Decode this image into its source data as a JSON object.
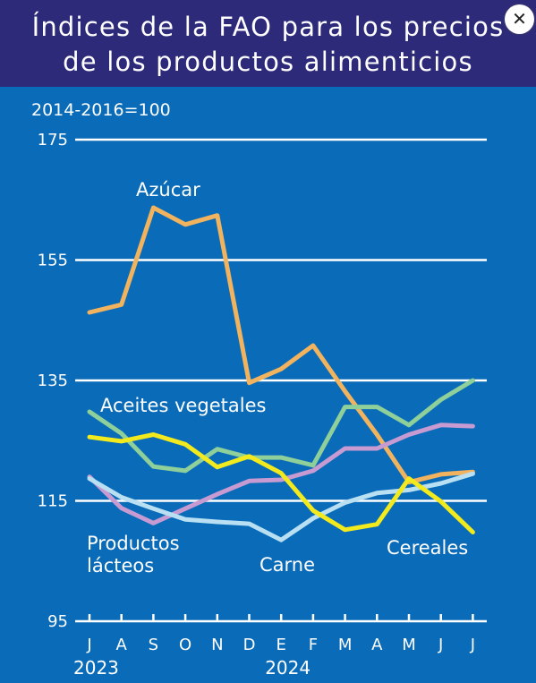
{
  "header": {
    "title_line1": "Índices de la FAO para los precios",
    "title_line2": "de los productos alimenticios"
  },
  "close_icon": "close-icon",
  "close_glyph": "✕",
  "chart_data": {
    "type": "line",
    "title": "Índices de la FAO para los precios de los productos alimenticios",
    "unit_label": "2014-2016=100",
    "ylim": [
      95,
      175
    ],
    "yticks": [
      95,
      115,
      135,
      155,
      175
    ],
    "categories": [
      "J",
      "A",
      "S",
      "O",
      "N",
      "D",
      "E",
      "F",
      "M",
      "A",
      "M",
      "J",
      "J"
    ],
    "year_labels": [
      {
        "text": "2023",
        "at_index": 0
      },
      {
        "text": "2024",
        "at_index": 6
      }
    ],
    "grid": "horizontal",
    "series": [
      {
        "name": "Azúcar",
        "color": "#f2b35e",
        "values": [
          146.3,
          147.6,
          163.7,
          160.9,
          162.4,
          134.6,
          136.9,
          140.8,
          133.2,
          126.0,
          118.1,
          119.4,
          119.8
        ]
      },
      {
        "name": "Aceites vegetales",
        "color": "#8ecf9a",
        "values": [
          129.8,
          126.2,
          120.7,
          120.0,
          123.6,
          122.2,
          122.2,
          120.9,
          130.6,
          130.6,
          127.6,
          131.8,
          135.0
        ]
      },
      {
        "name": "Productos lácteos",
        "color": "#c79bd1",
        "values": [
          119.0,
          113.8,
          111.3,
          113.7,
          116.1,
          118.3,
          118.5,
          120.0,
          123.7,
          123.7,
          126.0,
          127.6,
          127.4
        ]
      },
      {
        "name": "Carne",
        "color": "#b9e0f2",
        "values": [
          118.7,
          115.6,
          113.7,
          111.9,
          111.5,
          111.2,
          108.5,
          112.1,
          114.7,
          116.3,
          116.8,
          117.9,
          119.5
        ]
      },
      {
        "name": "Cereales",
        "color": "#f2ea1d",
        "values": [
          125.6,
          124.9,
          126.0,
          124.4,
          120.6,
          122.4,
          119.6,
          113.4,
          110.2,
          111.1,
          118.7,
          114.9,
          109.8
        ]
      }
    ],
    "series_labels": [
      {
        "series": "Azúcar",
        "lines": [
          "Azúcar"
        ]
      },
      {
        "series": "Aceites vegetales",
        "lines": [
          "Aceites vegetales"
        ]
      },
      {
        "series": "Productos lácteos",
        "lines": [
          "Productos",
          "lácteos"
        ]
      },
      {
        "series": "Carne",
        "lines": [
          "Carne"
        ]
      },
      {
        "series": "Cereales",
        "lines": [
          "Cereales"
        ]
      }
    ]
  }
}
